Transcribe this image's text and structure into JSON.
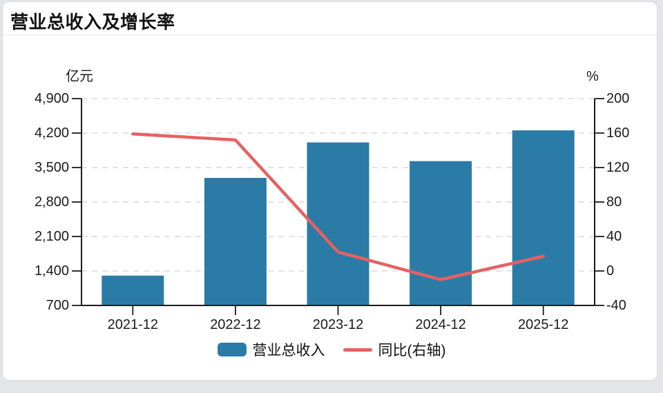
{
  "page": {
    "title": "营业总收入及增长率"
  },
  "chart_data": {
    "type": "bar",
    "title": "营业总收入及增长率",
    "categories": [
      "2021-12",
      "2022-12",
      "2023-12",
      "2024-12",
      "2025-12"
    ],
    "series": [
      {
        "name": "营业总收入",
        "type": "bar",
        "axis": "left",
        "unit": "亿元",
        "color": "#2b7ba7",
        "values": [
          1305,
          3290,
          4010,
          3630,
          4255
        ]
      },
      {
        "name": "同比(右轴)",
        "type": "line",
        "axis": "right",
        "unit": "%",
        "color": "#e66161",
        "values": [
          159,
          152,
          22,
          -10,
          17
        ]
      }
    ],
    "left_axis": {
      "label": "亿元",
      "min": 700,
      "max": 4900,
      "tick_values": [
        4900,
        4200,
        3500,
        2800,
        2100,
        1400,
        700
      ],
      "tick_labels": [
        "4,900",
        "4,200",
        "3,500",
        "2,800",
        "2,100",
        "1,400",
        "700"
      ]
    },
    "right_axis": {
      "label": "%",
      "min": -40,
      "max": 200,
      "tick_values": [
        200,
        160,
        120,
        80,
        40,
        0,
        -40
      ],
      "tick_labels": [
        "200",
        "160",
        "120",
        "80",
        "40",
        "0",
        "-40"
      ]
    },
    "legend": {
      "position": "bottom",
      "items": [
        "营业总收入",
        "同比(右轴)"
      ]
    },
    "grid": true
  },
  "colors": {
    "bar": "#2b7ba7",
    "line": "#e66161",
    "grid": "#d8d8d8",
    "axis": "#1a1a1a",
    "text": "#1a1a1a",
    "page_bg": "#e3e5e8",
    "card_bg": "#ffffff",
    "card_border": "#d9dbde",
    "divider": "#e4e4e4"
  }
}
